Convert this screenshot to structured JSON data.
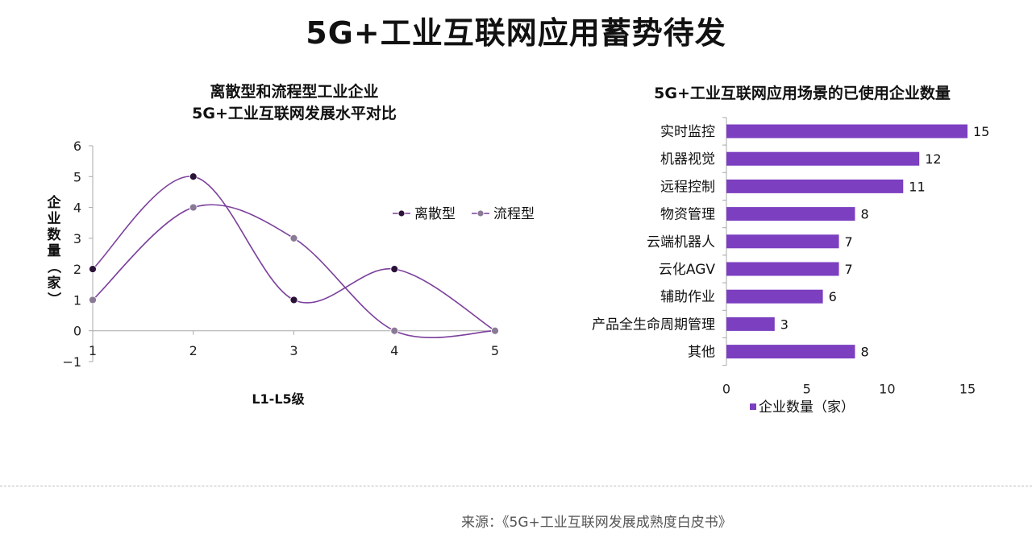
{
  "page": {
    "title": "5G+工业互联网应用蓄势待发",
    "source": "来源：《5G+工业互联网发展成熟度白皮书》"
  },
  "chart_data": [
    {
      "type": "line",
      "title_lines": [
        "离散型和流程型工业企业",
        "5G+工业互联网发展水平对比"
      ],
      "xlabel": "L1-L5级",
      "ylabel": "企业数量（家）",
      "x": [
        1,
        2,
        3,
        4,
        5
      ],
      "xlim": [
        1,
        5
      ],
      "ylim": [
        -1,
        6
      ],
      "yticks": [
        -1,
        0,
        1,
        2,
        3,
        4,
        5,
        6
      ],
      "series": [
        {
          "name": "离散型",
          "values": [
            2,
            5,
            1,
            2,
            0
          ],
          "color": "#2a1238"
        },
        {
          "name": "流程型",
          "values": [
            1,
            4,
            3,
            0,
            0
          ],
          "color": "#8a7a96"
        }
      ],
      "line_color": "#7b3f9c",
      "legend": "right",
      "smooth": true,
      "grid": false
    },
    {
      "type": "bar",
      "orientation": "horizontal",
      "title": "5G+工业互联网应用场景的已使用企业数量",
      "categories": [
        "实时监控",
        "机器视觉",
        "远程控制",
        "物资管理",
        "云端机器人",
        "云化AGV",
        "辅助作业",
        "产品全生命周期管理",
        "其他"
      ],
      "series": [
        {
          "name": "企业数量（家）",
          "values": [
            15,
            12,
            11,
            8,
            7,
            7,
            6,
            3,
            8
          ]
        }
      ],
      "xlim": [
        0,
        15
      ],
      "xticks": [
        0,
        5,
        10,
        15
      ],
      "bar_color": "#7b3fc0",
      "legend": "bottom",
      "grid": false
    }
  ]
}
